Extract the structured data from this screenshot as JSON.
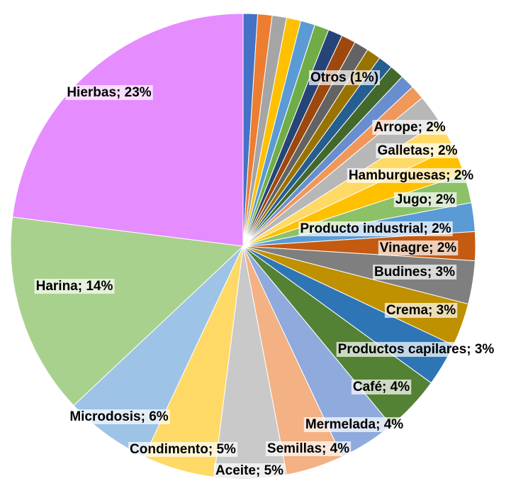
{
  "chart_data": {
    "type": "pie",
    "values": [
      1,
      1,
      1,
      1,
      1,
      1,
      1,
      1,
      1,
      1,
      1,
      1,
      1,
      1,
      2,
      2,
      2,
      2,
      2,
      2,
      3,
      3,
      3,
      4,
      4,
      4,
      5,
      5,
      6,
      14,
      23
    ],
    "value_labels": [
      null,
      null,
      null,
      null,
      null,
      null,
      null,
      null,
      null,
      null,
      null,
      null,
      null,
      null,
      "Arrope; 2%",
      "Galletas; 2%",
      "Hamburguesas; 2%",
      "Jugo; 2%",
      "Producto industrial; 2%",
      "Vinagre; 2%",
      "Budines; 3%",
      "Crema; 3%",
      "Productos capilares; 3%",
      "Café; 4%",
      "Mermelada; 4%",
      "Semillas; 4%",
      "Aceite; 5%",
      "Condimento; 5%",
      "Microdosis; 6%",
      "Harina; 14%",
      "Hierbas; 23%"
    ],
    "colors": [
      "#4472c4",
      "#ed7d31",
      "#a5a5a5",
      "#ffc000",
      "#5b9bd5",
      "#70ad47",
      "#264478",
      "#9e480e",
      "#636363",
      "#997300",
      "#255e91",
      "#43682b",
      "#698ed0",
      "#f1975a",
      "#b7b7b7",
      "#ffd966",
      "#ffc000",
      "#8cc168",
      "#5b9bd5",
      "#c55a11",
      "#7f7f7f",
      "#bf9000",
      "#2e75b6",
      "#548235",
      "#8faadc",
      "#f4b183",
      "#c9c9c9",
      "#ffd966",
      "#9dc3e6",
      "#a9d18e",
      "#e58cff"
    ],
    "annotations": [
      "Otros (1%)"
    ]
  }
}
